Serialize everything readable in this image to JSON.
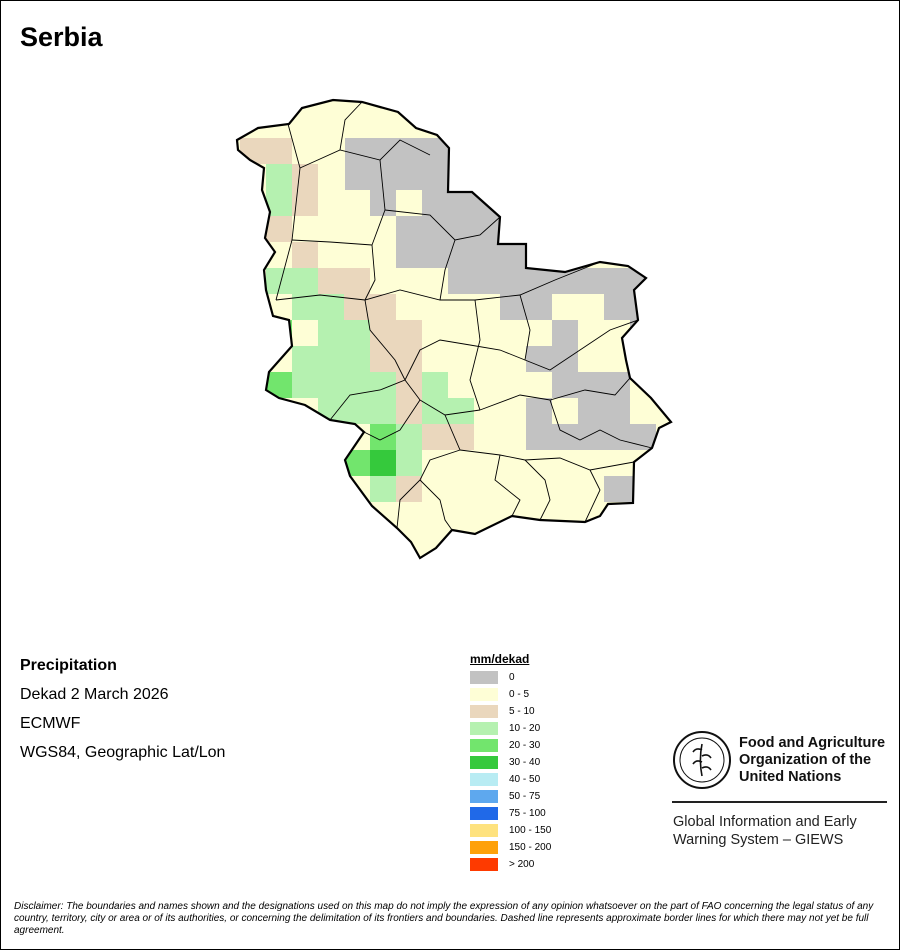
{
  "title": "Serbia",
  "info": {
    "variable": "Precipitation",
    "period": "Dekad 2 March 2026",
    "source": "ECMWF",
    "projection": "WGS84, Geographic Lat/Lon"
  },
  "legend": {
    "title": "mm/dekad",
    "items": [
      {
        "label": "0",
        "color": "#c2c2c2"
      },
      {
        "label": "0 - 5",
        "color": "#fefed6"
      },
      {
        "label": "5 - 10",
        "color": "#ead7bd"
      },
      {
        "label": "10 - 20",
        "color": "#b5f1b0"
      },
      {
        "label": "20 - 30",
        "color": "#72e56d"
      },
      {
        "label": "30 - 40",
        "color": "#35c93c"
      },
      {
        "label": "40 - 50",
        "color": "#b8ecf3"
      },
      {
        "label": "50 - 75",
        "color": "#5ea8ee"
      },
      {
        "label": "75 - 100",
        "color": "#2069e8"
      },
      {
        "label": "100 - 150",
        "color": "#fee27e"
      },
      {
        "label": "150 - 200",
        "color": "#fea10a"
      },
      {
        "label": "> 200",
        "color": "#fe3a00"
      }
    ]
  },
  "organization": {
    "line1": "Food and Agriculture",
    "line2": "Organization of the",
    "line3": "United Nations",
    "logo_text": "FAO",
    "logo_motto": "FIAT PANIS"
  },
  "system": {
    "line1": "Global Information and Early",
    "line2": "Warning System – GIEWS"
  },
  "disclaimer": "Disclaimer: The boundaries and names shown and the designations used on this map do not imply the expression of any opinion whatsoever on the part of FAO concerning the legal status of any country, territory, city or area or of its authorities, or concerning the delimitation of its frontiers and boundaries. Dashed line represents approximate border lines for which there may not yet be full agreement."
}
